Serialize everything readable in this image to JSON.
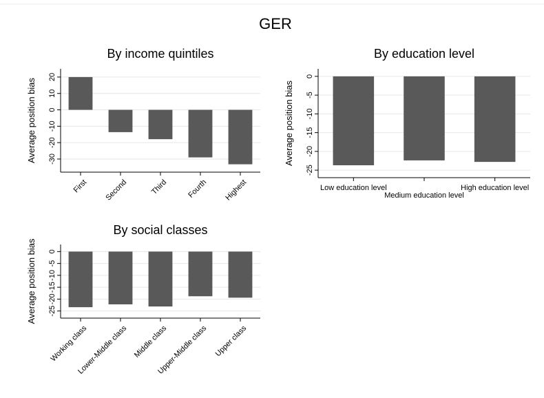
{
  "title": "GER",
  "chart_data": [
    {
      "type": "bar",
      "title": "By income quintiles",
      "y_label": "Average position bias",
      "categories": [
        "First",
        "Second",
        "Third",
        "Fourth",
        "Highest"
      ],
      "values": [
        20,
        -13.6,
        -17.9,
        -29,
        -33.2
      ],
      "color": "#595959",
      "ylim": [
        -38,
        25
      ],
      "yticks": [
        -30,
        -20,
        -10,
        0,
        10,
        20
      ],
      "grid": true
    },
    {
      "type": "bar",
      "title": "By education level",
      "y_label": "Average position bias",
      "categories": [
        "Low education level",
        "Medium education level",
        "High education level"
      ],
      "values": [
        -23.7,
        -22.4,
        -22.8
      ],
      "color": "#595959",
      "ylim": [
        -27,
        2
      ],
      "yticks": [
        -25,
        -20,
        -15,
        -10,
        -5,
        0
      ],
      "grid": true
    },
    {
      "type": "bar",
      "title": "By social classes",
      "y_label": "Average position bias",
      "categories": [
        "Working class",
        "Lower-Middle class",
        "Middle class",
        "Upper-Middle class",
        "Upper class"
      ],
      "values": [
        -23.4,
        -22.2,
        -23.1,
        -18.8,
        -19.4
      ],
      "color": "#595959",
      "ylim": [
        -28,
        3
      ],
      "yticks": [
        -25,
        -20,
        -15,
        -10,
        -5,
        0
      ],
      "grid": true
    }
  ]
}
